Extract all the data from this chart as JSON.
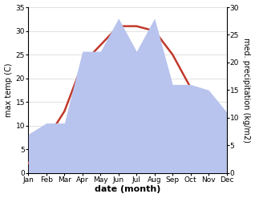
{
  "months": [
    "Jan",
    "Feb",
    "Mar",
    "Apr",
    "May",
    "Jun",
    "Jul",
    "Aug",
    "Sep",
    "Oct",
    "Nov",
    "Dec"
  ],
  "temperature": [
    2,
    7,
    13,
    23,
    27,
    31,
    31,
    30,
    25,
    18,
    10,
    7
  ],
  "precipitation": [
    7,
    9,
    9,
    22,
    22,
    28,
    22,
    28,
    16,
    16,
    15,
    11
  ],
  "temp_color": "#c0392b",
  "precip_fill_color": "#b8c4ee",
  "temp_ylim": [
    0,
    35
  ],
  "precip_ylim": [
    0,
    30
  ],
  "temp_yticks": [
    0,
    5,
    10,
    15,
    20,
    25,
    30,
    35
  ],
  "precip_yticks": [
    0,
    5,
    10,
    15,
    20,
    25,
    30
  ],
  "xlabel": "date (month)",
  "ylabel_left": "max temp (C)",
  "ylabel_right": "med. precipitation (kg/m2)",
  "bg_color": "#ffffff",
  "line_width": 1.8,
  "tick_fontsize": 6.5,
  "label_fontsize": 7,
  "xlabel_fontsize": 8
}
